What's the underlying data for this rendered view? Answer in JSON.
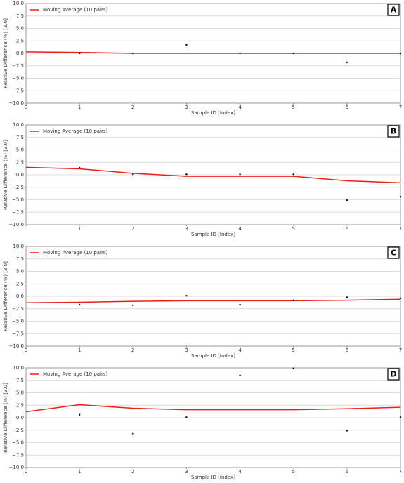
{
  "chart_data": [
    {
      "type": "scatter",
      "panel_label": "A",
      "x_label": "Sample ID [Index]",
      "y_label": "Relative Difference (%) [3.0]",
      "xlim": [
        0,
        7
      ],
      "xticks": [
        0,
        1,
        2,
        3,
        4,
        5,
        6,
        7
      ],
      "ylim": [
        -10,
        10
      ],
      "yticks": [
        {
          "value": 10,
          "label": "10.0"
        },
        {
          "value": 7.5,
          "label": "7.5"
        },
        {
          "value": 5,
          "label": "5.0"
        },
        {
          "value": 2.5,
          "label": "2.5"
        },
        {
          "value": 0,
          "label": "0.0"
        },
        {
          "value": -2.5,
          "label": "−2.5"
        },
        {
          "value": -5,
          "label": "−5.0"
        },
        {
          "value": -7.5,
          "label": "−7.5"
        },
        {
          "value": -10,
          "label": "−10.0"
        }
      ],
      "grid": true,
      "legend": "upper left",
      "points": {
        "color": "#000000",
        "x": [
          1,
          2,
          3,
          4,
          5,
          6,
          7
        ],
        "values": [
          0.0,
          0.0,
          1.7,
          0.0,
          0.0,
          -1.8,
          0.0
        ]
      },
      "series": [
        {
          "name": "Moving Average (10 pairs)",
          "color": "#e8211d",
          "x": [
            0,
            1,
            2,
            3,
            4,
            5,
            6,
            7
          ],
          "values": [
            0.3,
            0.2,
            0.0,
            0.0,
            0.0,
            0.0,
            0.0,
            0.0
          ]
        }
      ]
    },
    {
      "type": "scatter",
      "panel_label": "B",
      "x_label": "Sample ID [Index]",
      "y_label": "Relative Difference (%) [3.0]",
      "xlim": [
        0,
        7
      ],
      "xticks": [
        0,
        1,
        2,
        3,
        4,
        5,
        6,
        7
      ],
      "ylim": [
        -10,
        10
      ],
      "yticks": [
        {
          "value": 10,
          "label": "10.0"
        },
        {
          "value": 7.5,
          "label": "7.5"
        },
        {
          "value": 5,
          "label": "5.0"
        },
        {
          "value": 2.5,
          "label": "2.5"
        },
        {
          "value": 0,
          "label": "0.0"
        },
        {
          "value": -2.5,
          "label": "−2.5"
        },
        {
          "value": -5,
          "label": "−5.0"
        },
        {
          "value": -7.5,
          "label": "−7.5"
        },
        {
          "value": -10,
          "label": "−10.0"
        }
      ],
      "grid": true,
      "legend": "upper left",
      "points": {
        "color": "#000000",
        "x": [
          1,
          2,
          3,
          4,
          5,
          6,
          7
        ],
        "values": [
          1.4,
          0.1,
          0.1,
          0.1,
          0.1,
          -5.1,
          -4.4
        ]
      },
      "series": [
        {
          "name": "Moving Average (10 pairs)",
          "color": "#e8211d",
          "x": [
            0,
            1,
            2,
            3,
            4,
            5,
            6,
            7
          ],
          "values": [
            1.5,
            1.2,
            0.3,
            -0.3,
            -0.3,
            -0.3,
            -1.2,
            -1.6
          ]
        }
      ]
    },
    {
      "type": "scatter",
      "panel_label": "C",
      "x_label": "Sample ID [Index]",
      "y_label": "Relative Difference (%) [3.0]",
      "xlim": [
        0,
        7
      ],
      "xticks": [
        0,
        1,
        2,
        3,
        4,
        5,
        6,
        7
      ],
      "ylim": [
        -10,
        10
      ],
      "yticks": [
        {
          "value": 10,
          "label": "10.0"
        },
        {
          "value": 7.5,
          "label": "7.5"
        },
        {
          "value": 5,
          "label": "5.0"
        },
        {
          "value": 2.5,
          "label": "2.5"
        },
        {
          "value": 0,
          "label": "0.0"
        },
        {
          "value": -2.5,
          "label": "−2.5"
        },
        {
          "value": -5,
          "label": "−5.0"
        },
        {
          "value": -7.5,
          "label": "−7.5"
        },
        {
          "value": -10,
          "label": "−10.0"
        }
      ],
      "grid": true,
      "legend": "upper left",
      "points": {
        "color": "#000000",
        "x": [
          1,
          2,
          3,
          4,
          5,
          6,
          7
        ],
        "values": [
          -1.7,
          -1.8,
          0.1,
          -1.7,
          -0.8,
          -0.2,
          -0.4
        ]
      },
      "series": [
        {
          "name": "Moving Average (10 pairs)",
          "color": "#e8211d",
          "x": [
            0,
            1,
            2,
            3,
            4,
            5,
            6,
            7
          ],
          "values": [
            -1.3,
            -1.2,
            -1.0,
            -0.9,
            -0.9,
            -0.9,
            -0.8,
            -0.6
          ]
        }
      ]
    },
    {
      "type": "scatter",
      "panel_label": "D",
      "x_label": "Sample ID [Index]",
      "y_label": "Relative Difference (%) [3.0]",
      "xlim": [
        0,
        7
      ],
      "xticks": [
        0,
        1,
        2,
        3,
        4,
        5,
        6,
        7
      ],
      "ylim": [
        -10,
        10
      ],
      "yticks": [
        {
          "value": 10,
          "label": "10.0"
        },
        {
          "value": 7.5,
          "label": "7.5"
        },
        {
          "value": 5,
          "label": "5.0"
        },
        {
          "value": 2.5,
          "label": "2.5"
        },
        {
          "value": 0,
          "label": "0.0"
        },
        {
          "value": -2.5,
          "label": "−2.5"
        },
        {
          "value": -5,
          "label": "−5.0"
        },
        {
          "value": -7.5,
          "label": "−7.5"
        },
        {
          "value": -10,
          "label": "−10.0"
        }
      ],
      "grid": true,
      "legend": "upper left",
      "points": {
        "color": "#000000",
        "x": [
          1,
          2,
          3,
          4,
          5,
          6,
          7
        ],
        "values": [
          0.6,
          -3.2,
          0.1,
          8.5,
          9.9,
          -2.6,
          0.1
        ]
      },
      "series": [
        {
          "name": "Moving Average (10 pairs)",
          "color": "#e8211d",
          "x": [
            0,
            1,
            2,
            3,
            4,
            5,
            6,
            7
          ],
          "values": [
            1.2,
            2.6,
            1.9,
            1.6,
            1.6,
            1.6,
            1.8,
            2.1
          ]
        }
      ]
    }
  ]
}
